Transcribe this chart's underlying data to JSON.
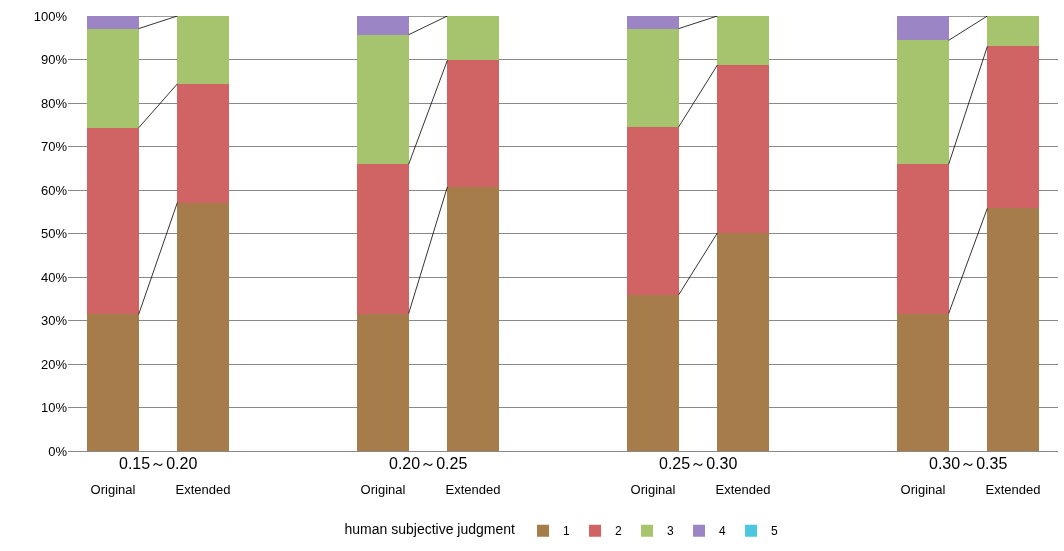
{
  "chart_data": {
    "type": "bar",
    "stacked": true,
    "legend_title": "human subjective judgment",
    "legend": "bottom",
    "grid": "y",
    "categories": [
      "Original",
      "Extended",
      null,
      "Original",
      "Extended",
      null,
      "Original",
      "Extended",
      null,
      "Original",
      "Extended"
    ],
    "annotations": [
      "0.15～0.20",
      "0.20～0.25",
      "0.25～0.30",
      "0.30～0.35"
    ],
    "series": [
      {
        "name": "1",
        "color": "#a67c4a",
        "values": [
          31.4,
          57.1,
          null,
          31.6,
          60.7,
          null,
          35.9,
          50.1,
          null,
          31.6,
          55.8
        ]
      },
      {
        "name": "2",
        "color": "#d06464",
        "values": [
          42.9,
          27.3,
          null,
          34.3,
          29.1,
          null,
          38.6,
          38.6,
          null,
          34.3,
          37.2
        ]
      },
      {
        "name": "3",
        "color": "#a6c46e",
        "values": [
          22.8,
          15.6,
          null,
          29.8,
          10.2,
          null,
          22.6,
          11.3,
          null,
          28.5,
          7.0
        ]
      },
      {
        "name": "4",
        "color": "#9b85c4",
        "values": [
          2.9,
          0,
          null,
          4.3,
          0,
          null,
          2.9,
          0,
          null,
          5.6,
          0
        ]
      },
      {
        "name": "5",
        "color": "#4bc8e0",
        "values": [
          0,
          0,
          null,
          0,
          0,
          null,
          0,
          0,
          null,
          0,
          0
        ]
      }
    ],
    "ylim": [
      0,
      100
    ],
    "yticks": [
      {
        "value": 0,
        "label": "0%"
      },
      {
        "value": 10,
        "label": "10%"
      },
      {
        "value": 20,
        "label": "20%"
      },
      {
        "value": 30,
        "label": "30%"
      },
      {
        "value": 40,
        "label": "40%"
      },
      {
        "value": 50,
        "label": "50%"
      },
      {
        "value": 60,
        "label": "60%"
      },
      {
        "value": 70,
        "label": "70%"
      },
      {
        "value": 80,
        "label": "80%"
      },
      {
        "value": 90,
        "label": "90%"
      },
      {
        "value": 100,
        "label": "100%"
      }
    ]
  }
}
